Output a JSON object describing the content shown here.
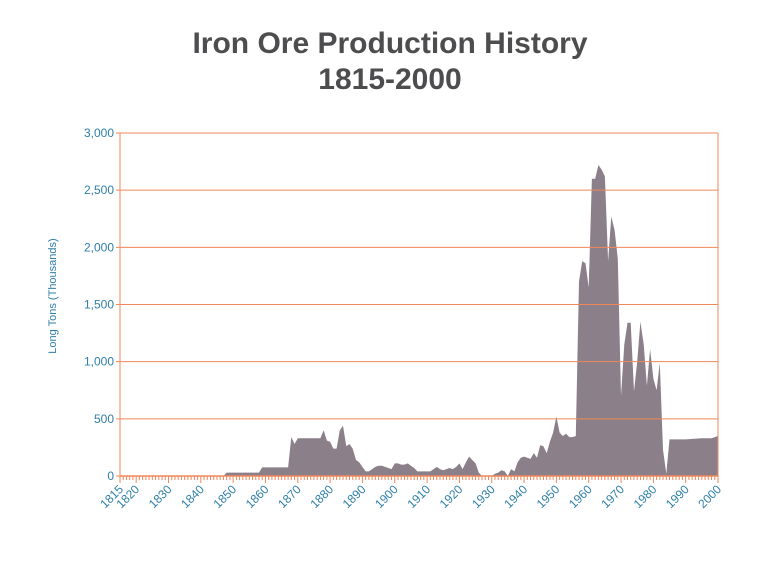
{
  "chart_data": {
    "type": "area",
    "title": "Iron Ore Production History",
    "subtitle": "1815-2000",
    "xlabel": "",
    "ylabel": "Long Tons (Thousands)",
    "xlim": [
      1815,
      2000
    ],
    "ylim": [
      0,
      3000
    ],
    "grid": true,
    "legend": "none",
    "xticks": [
      1815,
      1820,
      1830,
      1840,
      1850,
      1860,
      1870,
      1880,
      1890,
      1900,
      1910,
      1920,
      1930,
      1940,
      1950,
      1960,
      1970,
      1980,
      1990,
      2000
    ],
    "yticks": [
      0,
      500,
      1000,
      1500,
      2000,
      2500,
      3000
    ],
    "ytick_labels": [
      "0",
      "500",
      "1,000",
      "1,500",
      "2,000",
      "2,500",
      "3,000"
    ],
    "colors": {
      "fill": "#8b7f89",
      "grid": "#f0875a",
      "tick_text": "#2e7fa8",
      "title": "#4d4d4f"
    },
    "x": [
      1815,
      1847,
      1848,
      1858,
      1859,
      1867,
      1868,
      1869,
      1870,
      1877,
      1878,
      1879,
      1880,
      1881,
      1882,
      1883,
      1884,
      1885,
      1886,
      1887,
      1888,
      1889,
      1890,
      1891,
      1892,
      1893,
      1894,
      1895,
      1896,
      1897,
      1898,
      1899,
      1900,
      1901,
      1902,
      1903,
      1904,
      1905,
      1906,
      1907,
      1911,
      1912,
      1913,
      1914,
      1915,
      1916,
      1917,
      1918,
      1919,
      1920,
      1921,
      1922,
      1923,
      1924,
      1925,
      1926,
      1927,
      1930,
      1931,
      1932,
      1933,
      1934,
      1935,
      1936,
      1937,
      1938,
      1939,
      1940,
      1941,
      1942,
      1943,
      1944,
      1945,
      1946,
      1947,
      1948,
      1949,
      1950,
      1951,
      1952,
      1953,
      1954,
      1955,
      1956,
      1957,
      1958,
      1959,
      1960,
      1961,
      1962,
      1963,
      1964,
      1965,
      1966,
      1967,
      1968,
      1969,
      1970,
      1971,
      1972,
      1973,
      1974,
      1975,
      1976,
      1977,
      1978,
      1979,
      1980,
      1981,
      1982,
      1983,
      1984,
      1985,
      1990,
      1995,
      1998,
      2000
    ],
    "values": [
      0,
      0,
      30,
      30,
      75,
      75,
      340,
      280,
      330,
      330,
      400,
      310,
      300,
      240,
      240,
      400,
      440,
      260,
      280,
      240,
      140,
      120,
      80,
      40,
      40,
      60,
      80,
      90,
      90,
      80,
      70,
      60,
      110,
      110,
      100,
      100,
      110,
      90,
      70,
      40,
      40,
      60,
      80,
      60,
      50,
      60,
      70,
      60,
      80,
      110,
      60,
      120,
      170,
      140,
      110,
      30,
      0,
      0,
      20,
      30,
      50,
      40,
      0,
      60,
      40,
      120,
      160,
      170,
      160,
      150,
      200,
      160,
      270,
      260,
      200,
      300,
      380,
      520,
      380,
      350,
      370,
      340,
      340,
      350,
      1700,
      1880,
      1860,
      1650,
      2600,
      2600,
      2720,
      2680,
      2620,
      1880,
      2270,
      2150,
      1900,
      700,
      1150,
      1340,
      1340,
      740,
      1000,
      1350,
      1150,
      790,
      1110,
      850,
      750,
      990,
      230,
      20,
      320,
      320,
      330,
      330,
      350
    ]
  }
}
